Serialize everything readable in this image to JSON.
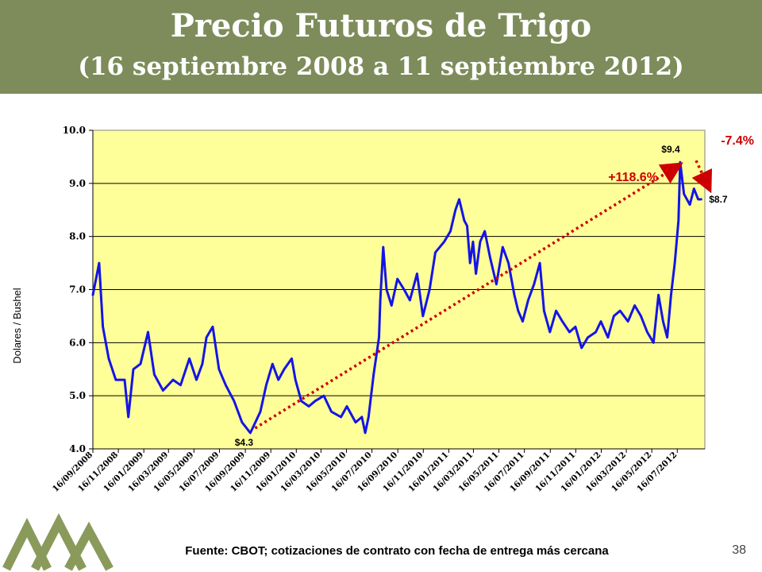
{
  "header": {
    "title": "Precio Futuros de Trigo",
    "subtitle": "(16 septiembre 2008 a 11 septiembre 2012)"
  },
  "footer": {
    "source": "Fuente: CBOT; cotizaciones de contrato con fecha de entrega más cercana",
    "page_number": "38"
  },
  "colors": {
    "banner": "#7d8c5a",
    "plot_background": "#ffff99",
    "series": "#1414e6",
    "annotation": "#cc0000",
    "logo": "#8a9a5b"
  },
  "chart_data": {
    "type": "line",
    "ylabel": "Dolares / Bushel",
    "xlabel": "",
    "ylim": [
      4.0,
      10.0
    ],
    "y_ticks": [
      "4.0",
      "5.0",
      "6.0",
      "7.0",
      "8.0",
      "9.0",
      "10.0"
    ],
    "x_tick_labels": [
      "16/09/2008",
      "16/11/2008",
      "16/01/2009",
      "16/03/2009",
      "16/05/2009",
      "16/07/2009",
      "16/09/2009",
      "16/11/2009",
      "16/01/2010",
      "16/03/2010",
      "16/05/2010",
      "16/07/2010",
      "16/09/2010",
      "16/11/2010",
      "16/01/2011",
      "16/03/2011",
      "16/05/2011",
      "16/07/2011",
      "16/09/2011",
      "16/11/2011",
      "16/01/2012",
      "16/03/2012",
      "16/05/2012",
      "16/07/2012"
    ],
    "grid": true,
    "legend": "none",
    "series": [
      {
        "x": [
          "2008-09-16",
          "2008-10-01",
          "2008-10-10",
          "2008-10-24",
          "2008-11-10",
          "2008-12-01",
          "2008-12-10",
          "2008-12-22",
          "2009-01-08",
          "2009-01-26",
          "2009-02-10",
          "2009-03-03",
          "2009-03-27",
          "2009-04-14",
          "2009-05-05",
          "2009-05-22",
          "2009-06-05",
          "2009-06-15",
          "2009-06-30",
          "2009-07-15",
          "2009-07-31",
          "2009-08-20",
          "2009-09-08",
          "2009-09-28",
          "2009-10-10",
          "2009-10-22",
          "2009-11-05",
          "2009-11-20",
          "2009-12-04",
          "2009-12-18",
          "2010-01-05",
          "2010-01-14",
          "2010-01-28",
          "2010-02-15",
          "2010-03-02",
          "2010-03-23",
          "2010-04-10",
          "2010-05-03",
          "2010-05-17",
          "2010-06-07",
          "2010-06-22",
          "2010-06-30",
          "2010-07-08",
          "2010-07-20",
          "2010-08-02",
          "2010-08-05",
          "2010-08-12",
          "2010-08-20",
          "2010-09-01",
          "2010-09-15",
          "2010-10-01",
          "2010-10-15",
          "2010-11-01",
          "2010-11-15",
          "2010-12-01",
          "2010-12-15",
          "2011-01-05",
          "2011-01-20",
          "2011-02-01",
          "2011-02-10",
          "2011-02-22",
          "2011-03-01",
          "2011-03-08",
          "2011-03-15",
          "2011-03-22",
          "2011-04-01",
          "2011-04-12",
          "2011-04-25",
          "2011-05-10",
          "2011-05-25",
          "2011-06-08",
          "2011-06-22",
          "2011-07-01",
          "2011-07-12",
          "2011-07-25",
          "2011-08-08",
          "2011-08-22",
          "2011-09-01",
          "2011-09-15",
          "2011-09-30",
          "2011-10-15",
          "2011-11-01",
          "2011-11-15",
          "2011-11-30",
          "2011-12-15",
          "2012-01-03",
          "2012-01-15",
          "2012-02-01",
          "2012-02-15",
          "2012-03-01",
          "2012-03-20",
          "2012-04-05",
          "2012-04-20",
          "2012-05-05",
          "2012-05-20",
          "2012-06-01",
          "2012-06-12",
          "2012-06-22",
          "2012-07-01",
          "2012-07-10",
          "2012-07-19",
          "2012-07-23",
          "2012-08-01",
          "2012-08-15",
          "2012-08-25",
          "2012-09-04",
          "2012-09-11"
        ],
        "values": [
          6.9,
          7.5,
          6.3,
          5.7,
          5.3,
          5.3,
          4.6,
          5.5,
          5.6,
          6.2,
          5.4,
          5.1,
          5.3,
          5.2,
          5.7,
          5.3,
          5.6,
          6.1,
          6.3,
          5.5,
          5.2,
          4.9,
          4.5,
          4.3,
          4.5,
          4.7,
          5.2,
          5.6,
          5.3,
          5.5,
          5.7,
          5.3,
          4.9,
          4.8,
          4.9,
          5.0,
          4.7,
          4.6,
          4.8,
          4.5,
          4.6,
          4.3,
          4.6,
          5.4,
          6.1,
          6.8,
          7.8,
          7.0,
          6.7,
          7.2,
          7.0,
          6.8,
          7.3,
          6.5,
          7.0,
          7.7,
          7.9,
          8.1,
          8.5,
          8.7,
          8.3,
          8.2,
          7.5,
          7.9,
          7.3,
          7.9,
          8.1,
          7.6,
          7.1,
          7.8,
          7.5,
          6.9,
          6.6,
          6.4,
          6.8,
          7.1,
          7.5,
          6.6,
          6.2,
          6.6,
          6.4,
          6.2,
          6.3,
          5.9,
          6.1,
          6.2,
          6.4,
          6.1,
          6.5,
          6.6,
          6.4,
          6.7,
          6.5,
          6.2,
          6.0,
          6.9,
          6.4,
          6.1,
          6.9,
          7.5,
          8.3,
          9.4,
          8.8,
          8.6,
          8.9,
          8.7,
          8.7
        ]
      }
    ],
    "annotations": [
      {
        "text": "$4.3",
        "x": "2009-09-28",
        "y": 4.3
      },
      {
        "text": "$9.4",
        "x": "2012-07-23",
        "y": 9.4
      },
      {
        "text": "$8.7",
        "x": "2012-09-11",
        "y": 8.7
      },
      {
        "text": "+118.6%",
        "from": [
          "2009-09-28",
          4.3
        ],
        "to": [
          "2012-07-23",
          9.4
        ]
      },
      {
        "text": "-7.4%",
        "from": [
          "2012-07-23",
          9.4
        ],
        "to": [
          "2012-09-11",
          8.7
        ]
      }
    ]
  }
}
